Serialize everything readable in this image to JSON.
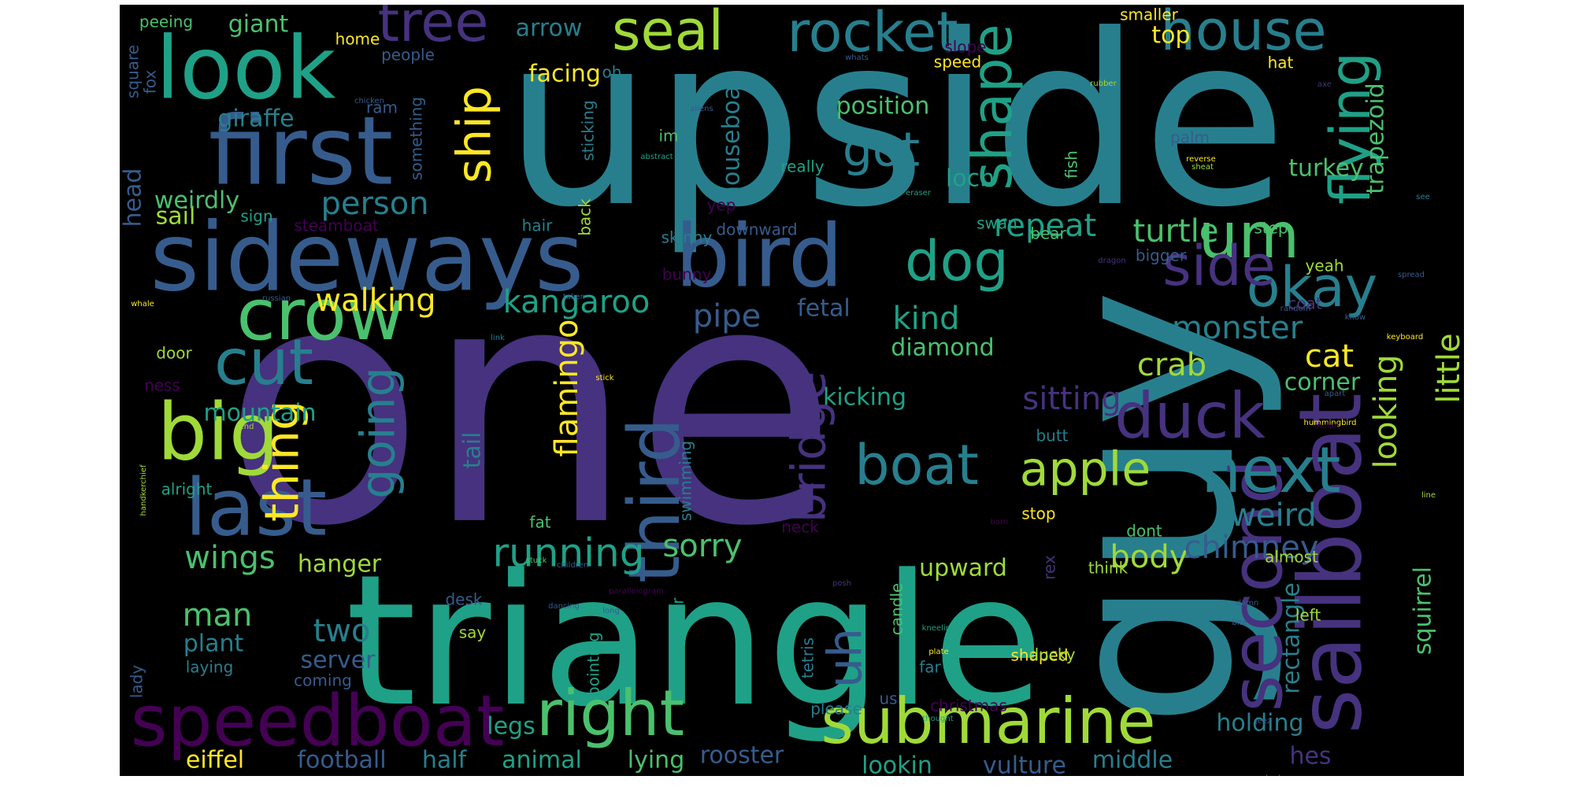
{
  "palette": [
    "#440154",
    "#46327e",
    "#365c8d",
    "#277f8e",
    "#1fa187",
    "#4ac16d",
    "#a0da39",
    "#fde725"
  ],
  "words": [
    {
      "text": "one",
      "color": "#46327e"
    },
    {
      "text": "upside",
      "color": "#277f8e"
    },
    {
      "text": "triangle",
      "color": "#1fa187"
    },
    {
      "text": "guy",
      "color": "#277f8e"
    },
    {
      "text": "sideways",
      "color": "#365c8d"
    },
    {
      "text": "first",
      "color": "#365c8d"
    },
    {
      "text": "look",
      "color": "#1fa187"
    },
    {
      "text": "bird",
      "color": "#365c8d"
    },
    {
      "text": "crow",
      "color": "#4ac16d"
    },
    {
      "text": "sailboat",
      "color": "#46327e"
    },
    {
      "text": "speedboat",
      "color": "#440154"
    },
    {
      "text": "submarine",
      "color": "#a0da39"
    },
    {
      "text": "big",
      "color": "#a0da39"
    },
    {
      "text": "last",
      "color": "#365c8d"
    },
    {
      "text": "right",
      "color": "#4ac16d"
    },
    {
      "text": "second",
      "color": "#46327e"
    },
    {
      "text": "next",
      "color": "#277f8e"
    },
    {
      "text": "duck",
      "color": "#46327e"
    },
    {
      "text": "um",
      "color": "#4ac16d"
    },
    {
      "text": "third",
      "color": "#365c8d"
    },
    {
      "text": "cut",
      "color": "#277f8e"
    },
    {
      "text": "boat",
      "color": "#277f8e"
    },
    {
      "text": "dog",
      "color": "#1fa187"
    },
    {
      "text": "okay",
      "color": "#277f8e"
    },
    {
      "text": "side",
      "color": "#46327e"
    },
    {
      "text": "flying",
      "color": "#1fa187"
    },
    {
      "text": "shape",
      "color": "#1fa187"
    },
    {
      "text": "rocket",
      "color": "#277f8e"
    },
    {
      "text": "seal",
      "color": "#a0da39"
    },
    {
      "text": "tree",
      "color": "#46327e"
    },
    {
      "text": "house",
      "color": "#277f8e"
    },
    {
      "text": "apple",
      "color": "#a0da39"
    },
    {
      "text": "got",
      "color": "#277f8e"
    },
    {
      "text": "ship",
      "color": "#fde725"
    },
    {
      "text": "thing",
      "color": "#fde725"
    },
    {
      "text": "running",
      "color": "#1fa187"
    },
    {
      "text": "going",
      "color": "#277f8e"
    },
    {
      "text": "bridge",
      "color": "#46327e"
    },
    {
      "text": "flamingo",
      "color": "#fde725"
    },
    {
      "text": "looking",
      "color": "#a0da39"
    },
    {
      "text": "little",
      "color": "#a0da39"
    },
    {
      "text": "uh",
      "color": "#365c8d"
    },
    {
      "text": "pipe",
      "color": "#365c8d"
    },
    {
      "text": "kind",
      "color": "#1fa187"
    },
    {
      "text": "repeat",
      "color": "#1fa187"
    },
    {
      "text": "turtle",
      "color": "#4ac16d"
    },
    {
      "text": "person",
      "color": "#277f8e"
    },
    {
      "text": "kangaroo",
      "color": "#1fa187"
    },
    {
      "text": "walking",
      "color": "#fde725"
    },
    {
      "text": "wings",
      "color": "#4ac16d"
    },
    {
      "text": "man",
      "color": "#4ac16d"
    },
    {
      "text": "two",
      "color": "#277f8e"
    },
    {
      "text": "sorry",
      "color": "#4ac16d"
    },
    {
      "text": "body",
      "color": "#a0da39"
    },
    {
      "text": "chimney",
      "color": "#365c8d"
    },
    {
      "text": "weird",
      "color": "#277f8e"
    },
    {
      "text": "crab",
      "color": "#a0da39"
    },
    {
      "text": "cat",
      "color": "#fde725"
    },
    {
      "text": "monster",
      "color": "#277f8e"
    },
    {
      "text": "sitting",
      "color": "#46327e"
    },
    {
      "text": "tail",
      "color": "#277f8e"
    },
    {
      "text": "head",
      "color": "#365c8d"
    },
    {
      "text": "giraffe",
      "color": "#277f8e"
    },
    {
      "text": "giant",
      "color": "#4ac16d"
    },
    {
      "text": "mountain",
      "color": "#1fa187"
    },
    {
      "text": "sail",
      "color": "#a0da39"
    },
    {
      "text": "weirdly",
      "color": "#4ac16d"
    },
    {
      "text": "hanger",
      "color": "#a0da39"
    },
    {
      "text": "plant",
      "color": "#277f8e"
    },
    {
      "text": "server",
      "color": "#365c8d"
    },
    {
      "text": "position",
      "color": "#4ac16d"
    },
    {
      "text": "houseboat",
      "color": "#277f8e"
    },
    {
      "text": "fetal",
      "color": "#365c8d"
    },
    {
      "text": "kicking",
      "color": "#1fa187"
    },
    {
      "text": "diamond",
      "color": "#4ac16d"
    },
    {
      "text": "loch",
      "color": "#1fa187"
    },
    {
      "text": "upward",
      "color": "#a0da39"
    },
    {
      "text": "rooster",
      "color": "#365c8d"
    },
    {
      "text": "animal",
      "color": "#1fa187"
    },
    {
      "text": "half",
      "color": "#277f8e"
    },
    {
      "text": "football",
      "color": "#365c8d"
    },
    {
      "text": "eiffel",
      "color": "#fde725"
    },
    {
      "text": "legs",
      "color": "#1fa187"
    },
    {
      "text": "lying",
      "color": "#4ac16d"
    },
    {
      "text": "lookin",
      "color": "#1fa187"
    },
    {
      "text": "vulture",
      "color": "#365c8d"
    },
    {
      "text": "middle",
      "color": "#277f8e"
    },
    {
      "text": "hes",
      "color": "#46327e"
    },
    {
      "text": "holding",
      "color": "#277f8e"
    },
    {
      "text": "rectangle",
      "color": "#277f8e"
    },
    {
      "text": "squirrel",
      "color": "#4ac16d"
    },
    {
      "text": "corner",
      "color": "#4ac16d"
    },
    {
      "text": "trapezoid",
      "color": "#4ac16d"
    },
    {
      "text": "turkey",
      "color": "#4ac16d"
    },
    {
      "text": "palm",
      "color": "#365c8d"
    },
    {
      "text": "top",
      "color": "#fde725"
    },
    {
      "text": "arrow",
      "color": "#277f8e"
    },
    {
      "text": "facing",
      "color": "#fde725"
    },
    {
      "text": "home",
      "color": "#fde725"
    },
    {
      "text": "people",
      "color": "#365c8d"
    },
    {
      "text": "peeing",
      "color": "#4ac16d"
    },
    {
      "text": "square",
      "color": "#365c8d"
    },
    {
      "text": "fox",
      "color": "#365c8d"
    },
    {
      "text": "ram",
      "color": "#365c8d"
    },
    {
      "text": "something",
      "color": "#365c8d"
    },
    {
      "text": "sticking",
      "color": "#277f8e"
    },
    {
      "text": "oh",
      "color": "#277f8e"
    },
    {
      "text": "im",
      "color": "#4ac16d"
    },
    {
      "text": "abstract",
      "color": "#1fa187"
    },
    {
      "text": "back",
      "color": "#a0da39"
    },
    {
      "text": "hair",
      "color": "#277f8e"
    },
    {
      "text": "downward",
      "color": "#365c8d"
    },
    {
      "text": "skinny",
      "color": "#277f8e"
    },
    {
      "text": "bunny",
      "color": "#440154"
    },
    {
      "text": "yep",
      "color": "#440154"
    },
    {
      "text": "really",
      "color": "#1fa187"
    },
    {
      "text": "steamboat",
      "color": "#440154"
    },
    {
      "text": "sign",
      "color": "#1fa187"
    },
    {
      "text": "door",
      "color": "#a0da39"
    },
    {
      "text": "ness",
      "color": "#440154"
    },
    {
      "text": "alright",
      "color": "#1fa187"
    },
    {
      "text": "fat",
      "color": "#4ac16d"
    },
    {
      "text": "neck",
      "color": "#440154"
    },
    {
      "text": "swimming",
      "color": "#277f8e"
    },
    {
      "text": "tower",
      "color": "#1fa187"
    },
    {
      "text": "desk",
      "color": "#365c8d"
    },
    {
      "text": "say",
      "color": "#a0da39"
    },
    {
      "text": "pointing",
      "color": "#1fa187"
    },
    {
      "text": "coming",
      "color": "#365c8d"
    },
    {
      "text": "laying",
      "color": "#277f8e"
    },
    {
      "text": "lady",
      "color": "#365c8d"
    },
    {
      "text": "tetris",
      "color": "#277f8e"
    },
    {
      "text": "candle",
      "color": "#4ac16d"
    },
    {
      "text": "far",
      "color": "#277f8e"
    },
    {
      "text": "please",
      "color": "#277f8e"
    },
    {
      "text": "us",
      "color": "#365c8d"
    },
    {
      "text": "christmas",
      "color": "#440154"
    },
    {
      "text": "shaped",
      "color": "#fde725"
    },
    {
      "text": "think",
      "color": "#a0da39"
    },
    {
      "text": "rex",
      "color": "#46327e"
    },
    {
      "text": "stop",
      "color": "#fde725"
    },
    {
      "text": "butt",
      "color": "#277f8e"
    },
    {
      "text": "dont",
      "color": "#4ac16d"
    },
    {
      "text": "almost",
      "color": "#a0da39"
    },
    {
      "text": "left",
      "color": "#a0da39"
    },
    {
      "text": "bigger",
      "color": "#365c8d"
    },
    {
      "text": "step",
      "color": "#4ac16d"
    },
    {
      "text": "yeah",
      "color": "#a0da39"
    },
    {
      "text": "coat",
      "color": "#46327e"
    },
    {
      "text": "swan",
      "color": "#1fa187"
    },
    {
      "text": "bear",
      "color": "#4ac16d"
    },
    {
      "text": "fish",
      "color": "#4ac16d"
    },
    {
      "text": "slope",
      "color": "#440154"
    },
    {
      "text": "speed",
      "color": "#fde725"
    },
    {
      "text": "hat",
      "color": "#fde725"
    },
    {
      "text": "smaller",
      "color": "#fde725"
    },
    {
      "text": "rubber",
      "color": "#a0da39"
    },
    {
      "text": "axe",
      "color": "#46327e"
    },
    {
      "text": "whats",
      "color": "#365c8d"
    },
    {
      "text": "keyboard",
      "color": "#fde725"
    },
    {
      "text": "spread",
      "color": "#365c8d"
    },
    {
      "text": "know",
      "color": "#365c8d"
    },
    {
      "text": "random",
      "color": "#365c8d"
    },
    {
      "text": "apart",
      "color": "#365c8d"
    },
    {
      "text": "reverse",
      "color": "#fde725"
    },
    {
      "text": "sheat",
      "color": "#a0da39"
    },
    {
      "text": "eraser",
      "color": "#1fa187"
    },
    {
      "text": "dragon",
      "color": "#46327e"
    },
    {
      "text": "see",
      "color": "#277f8e"
    },
    {
      "text": "hummingbird",
      "color": "#fde725"
    },
    {
      "text": "indian",
      "color": "#440154"
    },
    {
      "text": "line",
      "color": "#a0da39"
    },
    {
      "text": "ducky",
      "color": "#a0da39"
    },
    {
      "text": "jeez",
      "color": "#365c8d"
    },
    {
      "text": "damn",
      "color": "#365c8d"
    },
    {
      "text": "bite",
      "color": "#365c8d"
    },
    {
      "text": "crouched",
      "color": "#1fa187"
    },
    {
      "text": "littler",
      "color": "#440154"
    },
    {
      "text": "kneeling",
      "color": "#1fa187"
    },
    {
      "text": "plate",
      "color": "#fde725"
    },
    {
      "text": "posh",
      "color": "#46327e"
    },
    {
      "text": "barn",
      "color": "#440154"
    },
    {
      "text": "thought",
      "color": "#1fa187"
    },
    {
      "text": "parallelogram",
      "color": "#440154"
    },
    {
      "text": "long",
      "color": "#365c8d"
    },
    {
      "text": "dancing",
      "color": "#365c8d"
    },
    {
      "text": "children",
      "color": "#365c8d"
    },
    {
      "text": "stuck",
      "color": "#4ac16d"
    },
    {
      "text": "handkerchief",
      "color": "#a0da39"
    },
    {
      "text": "end",
      "color": "#a0da39"
    },
    {
      "text": "stick",
      "color": "#fde725"
    },
    {
      "text": "whale",
      "color": "#fde725"
    },
    {
      "text": "russian",
      "color": "#365c8d"
    },
    {
      "text": "link",
      "color": "#277f8e"
    },
    {
      "text": "taken",
      "color": "#365c8d"
    },
    {
      "text": "chicken",
      "color": "#365c8d"
    },
    {
      "text": "aliens",
      "color": "#365c8d"
    },
    {
      "text": "go",
      "color": "#365c8d"
    }
  ]
}
